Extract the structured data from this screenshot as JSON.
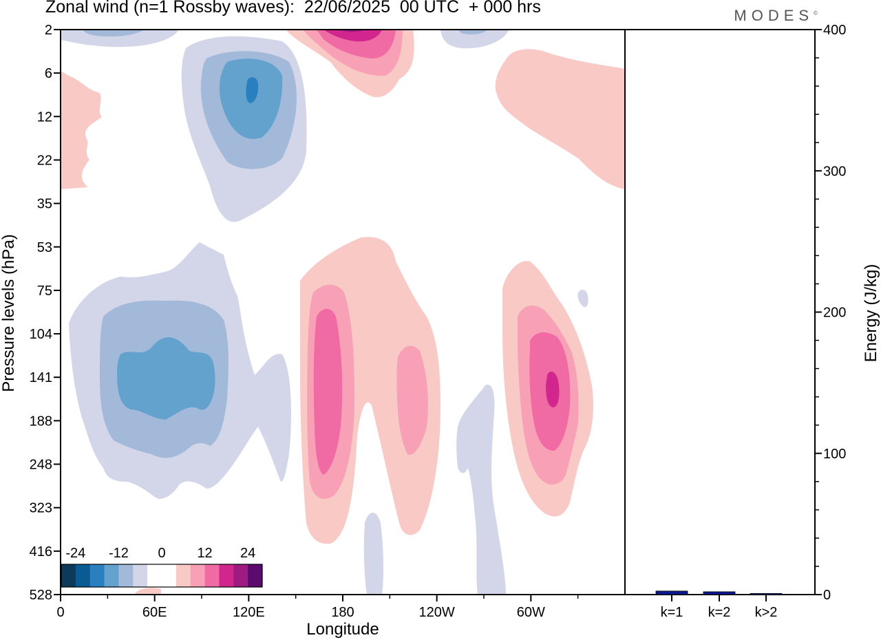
{
  "title": "Zonal wind (n=1 Rossby waves):  22/06/2025  00 UTC  + 000 hrs",
  "brand": "MODES",
  "brand_mark": "©",
  "chart_data": [
    {
      "type": "heatmap",
      "title": "Zonal wind (n=1 Rossby waves):  22/06/2025  00 UTC  + 000 hrs",
      "xlabel": "Longitude",
      "ylabel": "Pressure levels (hPa)",
      "x_ticks": [
        {
          "label": "0",
          "lon": 0
        },
        {
          "label": "60E",
          "lon": 60
        },
        {
          "label": "120E",
          "lon": 120
        },
        {
          "label": "180",
          "lon": 180
        },
        {
          "label": "120W",
          "lon": 240
        },
        {
          "label": "60W",
          "lon": 300
        }
      ],
      "xlim": [
        0,
        360
      ],
      "y_levels": [
        "2",
        "6",
        "12",
        "22",
        "35",
        "53",
        "75",
        "104",
        "141",
        "188",
        "248",
        "323",
        "416",
        "528"
      ],
      "colorbar": {
        "labels": [
          {
            "text": "-24",
            "value": -24
          },
          {
            "text": "-12",
            "value": -12
          },
          {
            "text": "0",
            "value": 0
          },
          {
            "text": "12",
            "value": 12
          },
          {
            "text": "24",
            "value": 24
          }
        ],
        "colors": [
          "#0d3a59",
          "#0a5a94",
          "#2a7fbe",
          "#62a2cc",
          "#a3b9d9",
          "#d3d6e8",
          "#ffffff",
          "#ffffff",
          "#f9c9c6",
          "#f8a1b6",
          "#f06aa3",
          "#d0268d",
          "#9e1b82",
          "#5b0a6e"
        ]
      },
      "features": [
        {
          "sign": "negative",
          "lon": 120,
          "level": "8",
          "peak": -15
        },
        {
          "sign": "negative",
          "lon": 65,
          "level": "141",
          "peak": -12
        },
        {
          "sign": "positive",
          "lon": 182,
          "level": "2",
          "peak": 18
        },
        {
          "sign": "positive",
          "lon": 172,
          "level": "141",
          "peak": 12
        },
        {
          "sign": "positive",
          "lon": 225,
          "level": "150",
          "peak": 6
        },
        {
          "sign": "positive",
          "lon": 315,
          "level": "141",
          "peak": 15
        },
        {
          "sign": "positive",
          "lon": 345,
          "level": "10",
          "peak": 3
        },
        {
          "sign": "positive",
          "lon": 5,
          "level": "12",
          "peak": 3
        }
      ]
    },
    {
      "type": "bar",
      "ylabel": "Energy (J/kg)",
      "ylim": [
        0,
        400
      ],
      "y_ticks": [
        0,
        100,
        200,
        300,
        400
      ],
      "categories": [
        "k=1",
        "k=2",
        "k>2"
      ],
      "values": [
        2.5,
        2,
        0.8
      ],
      "color": "#0a1a8c"
    }
  ]
}
